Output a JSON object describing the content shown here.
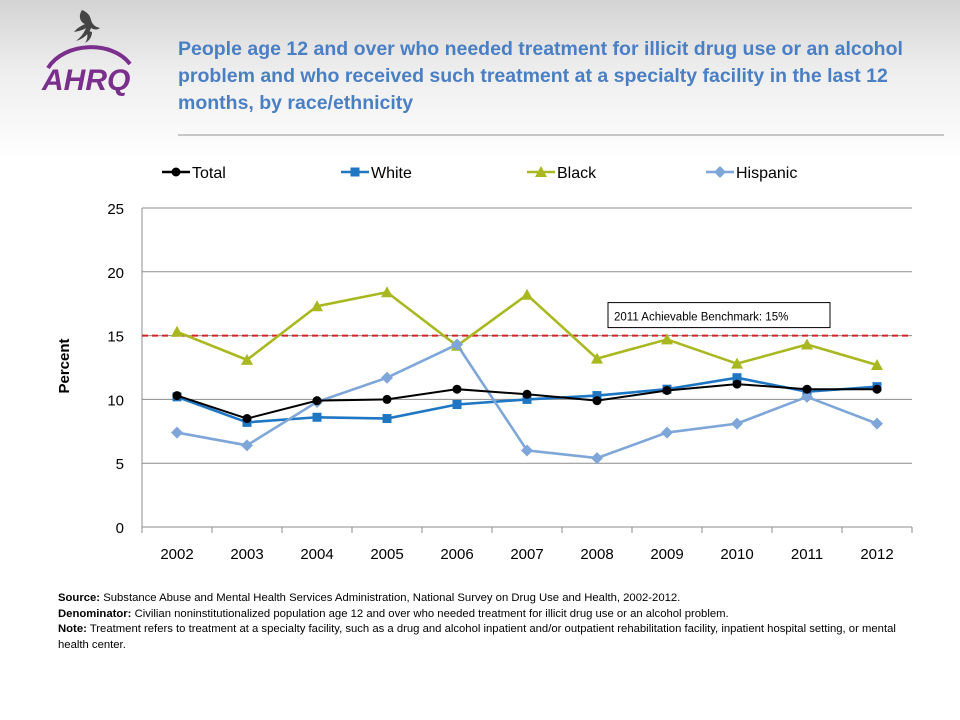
{
  "logo": {
    "text": "AHRQ",
    "icon": "hhs-eagle-icon",
    "colors": {
      "text": "#7a2f8c",
      "swoosh": "#7a2f8c",
      "eagle": "#444444"
    }
  },
  "title": "People age 12 and over who needed treatment for illicit drug use or an alcohol problem and who received such treatment at a specialty facility in the last 12 months, by race/ethnicity",
  "chart_data": {
    "type": "line",
    "categories": [
      "2002",
      "2003",
      "2004",
      "2005",
      "2006",
      "2007",
      "2008",
      "2009",
      "2010",
      "2011",
      "2012"
    ],
    "ylabel": "Percent",
    "ylim": [
      0,
      25
    ],
    "yticks": [
      0,
      5,
      10,
      15,
      20,
      25
    ],
    "grid": true,
    "legend_position": "top",
    "series": [
      {
        "name": "Total",
        "color": "#000000",
        "marker": "circle",
        "values": [
          10.3,
          8.5,
          9.9,
          10.0,
          10.8,
          10.4,
          9.9,
          10.7,
          11.2,
          10.8,
          10.8
        ]
      },
      {
        "name": "White",
        "color": "#1f77c4",
        "marker": "square",
        "values": [
          10.2,
          8.2,
          8.6,
          8.5,
          9.6,
          10.0,
          10.3,
          10.8,
          11.7,
          10.6,
          11.0
        ]
      },
      {
        "name": "Black",
        "color": "#a9b820",
        "marker": "triangle",
        "values": [
          15.3,
          13.1,
          17.3,
          18.4,
          14.2,
          18.2,
          13.2,
          14.7,
          12.8,
          14.3,
          12.7
        ]
      },
      {
        "name": "Hispanic",
        "color": "#7ea6d8",
        "marker": "diamond",
        "values": [
          7.4,
          6.4,
          9.8,
          11.7,
          14.3,
          6.0,
          5.4,
          7.4,
          8.1,
          10.2,
          8.1
        ]
      }
    ],
    "benchmark": {
      "value": 15,
      "label": "2011 Achievable Benchmark:  15%",
      "color": "#d42424"
    }
  },
  "notes": {
    "source_label": "Source:",
    "source_text": "Substance Abuse and Mental Health Services Administration, National Survey on Drug Use and Health, 2002-2012.",
    "denominator_label": "Denominator:",
    "denominator_text": "Civilian noninstitutionalized population age 12 and over who needed treatment for illicit drug use or an alcohol problem.",
    "note_label": "Note:",
    "note_text": "Treatment refers to treatment at a specialty facility, such as a drug and alcohol inpatient and/or outpatient rehabilitation facility, inpatient hospital setting, or mental health center."
  }
}
